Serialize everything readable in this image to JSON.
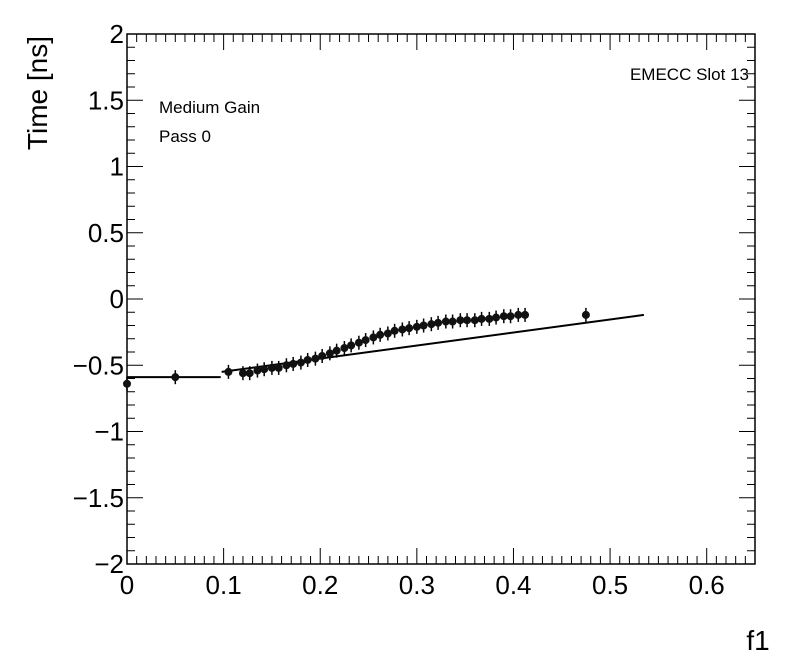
{
  "chart_data": {
    "type": "scatter",
    "title": "",
    "xlabel": "f1",
    "ylabel": "Time [ns]",
    "xlim": [
      0,
      0.65
    ],
    "ylim": [
      -2,
      2
    ],
    "grid": false,
    "x_ticks": [
      0,
      0.1,
      0.2,
      0.3,
      0.4,
      0.5,
      0.6
    ],
    "x_tick_labels": [
      "0",
      "0.1",
      "0.2",
      "0.3",
      "0.4",
      "0.5",
      "0.6"
    ],
    "y_ticks": [
      -2,
      -1.5,
      -1,
      -0.5,
      0,
      0.5,
      1,
      1.5,
      2
    ],
    "y_tick_labels": [
      "−2",
      "−1.5",
      "−1",
      "−0.5",
      "0",
      "0.5",
      "1",
      "1.5",
      "2"
    ],
    "annotations": {
      "top_right": "EMECC Slot 13",
      "line1": "Medium Gain",
      "line2": "Pass 0"
    },
    "series": [
      {
        "name": "points",
        "x": [
          0.0,
          0.05,
          0.105,
          0.12,
          0.127,
          0.135,
          0.142,
          0.15,
          0.157,
          0.165,
          0.172,
          0.18,
          0.187,
          0.195,
          0.202,
          0.21,
          0.217,
          0.225,
          0.232,
          0.24,
          0.247,
          0.255,
          0.262,
          0.27,
          0.277,
          0.285,
          0.292,
          0.3,
          0.307,
          0.315,
          0.322,
          0.33,
          0.337,
          0.345,
          0.352,
          0.36,
          0.367,
          0.375,
          0.382,
          0.39,
          0.397,
          0.405,
          0.412,
          0.475
        ],
        "y": [
          -0.64,
          -0.59,
          -0.55,
          -0.56,
          -0.56,
          -0.54,
          -0.53,
          -0.52,
          -0.52,
          -0.5,
          -0.49,
          -0.48,
          -0.46,
          -0.45,
          -0.43,
          -0.41,
          -0.39,
          -0.37,
          -0.35,
          -0.33,
          -0.31,
          -0.29,
          -0.27,
          -0.26,
          -0.24,
          -0.23,
          -0.22,
          -0.21,
          -0.2,
          -0.19,
          -0.18,
          -0.17,
          -0.17,
          -0.16,
          -0.16,
          -0.16,
          -0.15,
          -0.15,
          -0.14,
          -0.13,
          -0.13,
          -0.12,
          -0.12,
          -0.12
        ]
      }
    ],
    "fit_segments": [
      {
        "x": [
          0.0,
          0.097
        ],
        "y": [
          -0.59,
          -0.59
        ]
      },
      {
        "x": [
          0.098,
          0.535
        ],
        "y": [
          -0.55,
          -0.12
        ]
      }
    ]
  }
}
